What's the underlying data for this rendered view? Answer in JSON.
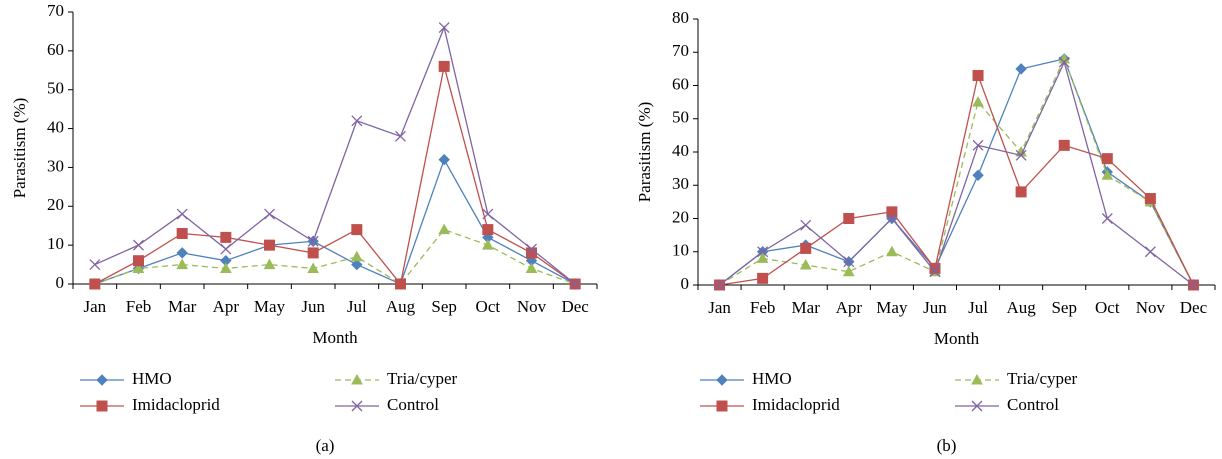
{
  "chart_data": [
    {
      "type": "line",
      "caption": "(a)",
      "x_label": "Month",
      "y_label": "Parasitism (%)",
      "categories": [
        "Jan",
        "Feb",
        "Mar",
        "Apr",
        "May",
        "Jun",
        "Jul",
        "Aug",
        "Sep",
        "Oct",
        "Nov",
        "Dec"
      ],
      "ylim": [
        0,
        70
      ],
      "yticks": [
        0,
        10,
        20,
        30,
        40,
        50,
        60,
        70
      ],
      "series": [
        {
          "name": "HMO",
          "color": "#4f81bd",
          "marker": "diamond",
          "dash": false,
          "values": [
            0,
            4,
            8,
            6,
            10,
            11,
            5,
            0,
            32,
            12,
            6,
            0
          ]
        },
        {
          "name": "Tria/cyper",
          "color": "#9bbb59",
          "marker": "triangle",
          "dash": true,
          "values": [
            0,
            4,
            5,
            4,
            5,
            4,
            7,
            0,
            14,
            10,
            4,
            0
          ]
        },
        {
          "name": "Imidacloprid",
          "color": "#c0504d",
          "marker": "square",
          "dash": false,
          "values": [
            0,
            6,
            13,
            12,
            10,
            8,
            14,
            0,
            56,
            14,
            8,
            0
          ]
        },
        {
          "name": "Control",
          "color": "#8064a2",
          "marker": "x",
          "dash": false,
          "values": [
            5,
            10,
            18,
            9,
            18,
            11,
            42,
            38,
            66,
            18,
            9,
            0
          ]
        }
      ]
    },
    {
      "type": "line",
      "caption": "(b)",
      "x_label": "Month",
      "y_label": "Parasitism (%)",
      "categories": [
        "Jan",
        "Feb",
        "Mar",
        "Apr",
        "May",
        "Jun",
        "Jul",
        "Aug",
        "Sep",
        "Oct",
        "Nov",
        "Dec"
      ],
      "ylim": [
        0,
        80
      ],
      "yticks": [
        0,
        10,
        20,
        30,
        40,
        50,
        60,
        70,
        80
      ],
      "series": [
        {
          "name": "HMO",
          "color": "#4f81bd",
          "marker": "diamond",
          "dash": false,
          "values": [
            0,
            10,
            12,
            7,
            20,
            5,
            33,
            65,
            68,
            34,
            25,
            0
          ]
        },
        {
          "name": "Tria/cyper",
          "color": "#9bbb59",
          "marker": "triangle",
          "dash": true,
          "values": [
            0,
            8,
            6,
            4,
            10,
            4,
            55,
            40,
            68,
            33,
            25,
            0
          ]
        },
        {
          "name": "Imidacloprid",
          "color": "#c0504d",
          "marker": "square",
          "dash": false,
          "values": [
            0,
            2,
            11,
            20,
            22,
            5,
            63,
            28,
            42,
            38,
            26,
            0
          ]
        },
        {
          "name": "Control",
          "color": "#8064a2",
          "marker": "x",
          "dash": false,
          "values": [
            0,
            10,
            18,
            7,
            20,
            4,
            42,
            39,
            67,
            20,
            10,
            0
          ]
        }
      ]
    }
  ]
}
